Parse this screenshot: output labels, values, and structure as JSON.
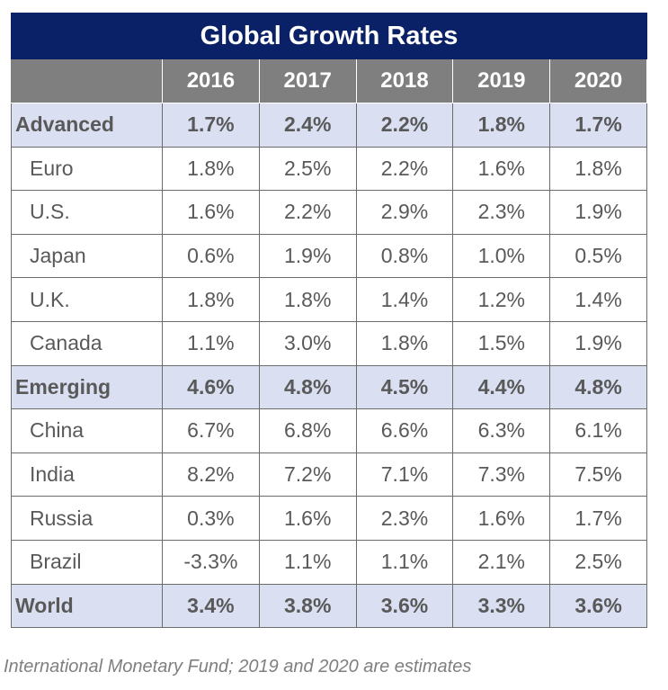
{
  "chart_data": {
    "type": "table",
    "title": "Global Growth Rates",
    "columns": [
      "2016",
      "2017",
      "2018",
      "2019",
      "2020"
    ],
    "rows": [
      {
        "label": "Advanced",
        "group": true,
        "values": [
          "1.7%",
          "2.4%",
          "2.2%",
          "1.8%",
          "1.7%"
        ]
      },
      {
        "label": "Euro",
        "group": false,
        "values": [
          "1.8%",
          "2.5%",
          "2.2%",
          "1.6%",
          "1.8%"
        ]
      },
      {
        "label": "U.S.",
        "group": false,
        "values": [
          "1.6%",
          "2.2%",
          "2.9%",
          "2.3%",
          "1.9%"
        ]
      },
      {
        "label": "Japan",
        "group": false,
        "values": [
          "0.6%",
          "1.9%",
          "0.8%",
          "1.0%",
          "0.5%"
        ]
      },
      {
        "label": "U.K.",
        "group": false,
        "values": [
          "1.8%",
          "1.8%",
          "1.4%",
          "1.2%",
          "1.4%"
        ]
      },
      {
        "label": "Canada",
        "group": false,
        "values": [
          "1.1%",
          "3.0%",
          "1.8%",
          "1.5%",
          "1.9%"
        ]
      },
      {
        "label": "Emerging",
        "group": true,
        "values": [
          "4.6%",
          "4.8%",
          "4.5%",
          "4.4%",
          "4.8%"
        ]
      },
      {
        "label": "China",
        "group": false,
        "values": [
          "6.7%",
          "6.8%",
          "6.6%",
          "6.3%",
          "6.1%"
        ]
      },
      {
        "label": "India",
        "group": false,
        "values": [
          "8.2%",
          "7.2%",
          "7.1%",
          "7.3%",
          "7.5%"
        ]
      },
      {
        "label": "Russia",
        "group": false,
        "values": [
          "0.3%",
          "1.6%",
          "2.3%",
          "1.6%",
          "1.7%"
        ]
      },
      {
        "label": "Brazil",
        "group": false,
        "values": [
          "-3.3%",
          "1.1%",
          "1.1%",
          "2.1%",
          "2.5%"
        ]
      },
      {
        "label": "World",
        "group": true,
        "values": [
          "3.4%",
          "3.8%",
          "3.6%",
          "3.3%",
          "3.6%"
        ]
      }
    ],
    "caption": "International Monetary Fund; 2019 and 2020 are estimates",
    "colors": {
      "title_bg": "#0b2167",
      "header_bg": "#7f7f7f",
      "group_bg": "#dae0f2",
      "text": "#595959"
    }
  }
}
